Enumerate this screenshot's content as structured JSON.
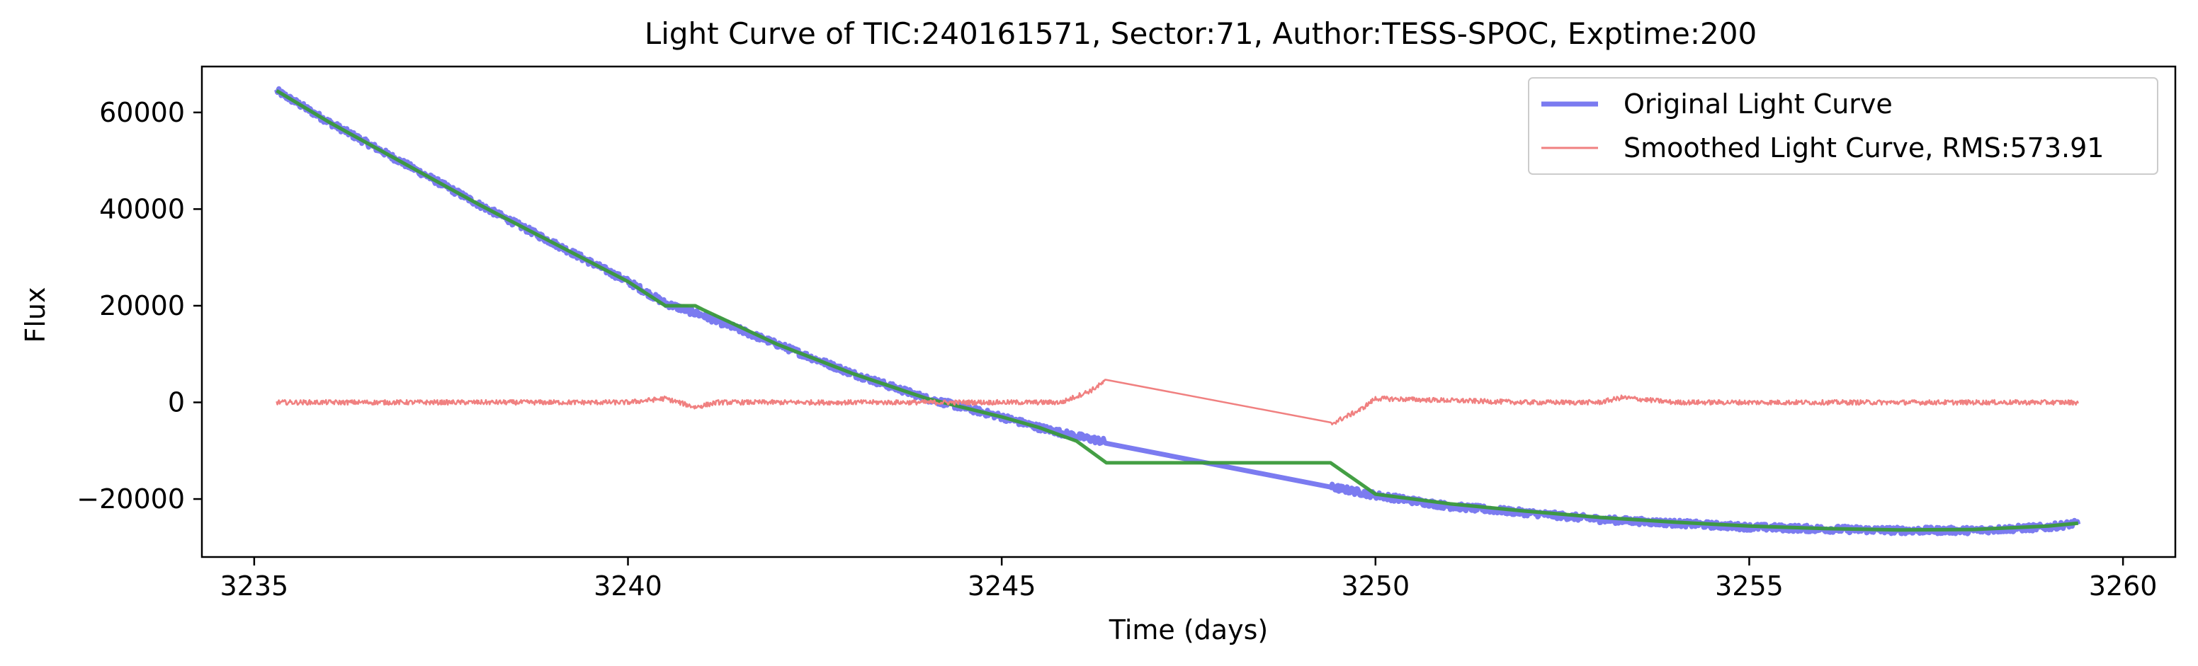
{
  "chart_data": {
    "type": "line",
    "title": "Light Curve of TIC:240161571, Sector:71, Author:TESS-SPOC, Exptime:200",
    "xlabel": "Time (days)",
    "ylabel": "Flux",
    "xlim": [
      3234.3,
      3260.7
    ],
    "ylim": [
      -32000,
      69500
    ],
    "xticks": [
      3235,
      3240,
      3245,
      3250,
      3255,
      3260
    ],
    "xtick_labels": [
      "3235",
      "3240",
      "3245",
      "3250",
      "3255",
      "3260"
    ],
    "yticks": [
      -20000,
      0,
      20000,
      40000,
      60000
    ],
    "ytick_labels": [
      "−20000",
      "0",
      "20000",
      "40000",
      "60000"
    ],
    "grid": false,
    "legend_position": "top-right",
    "series": [
      {
        "name": "Original Light Curve",
        "legend_label": "Original Light Curve",
        "color": "#7b7bf0",
        "noisy": true,
        "x": [
          3235.3,
          3236.0,
          3237.0,
          3238.0,
          3239.0,
          3240.0,
          3240.5,
          3241.0,
          3242.0,
          3243.0,
          3244.0,
          3245.0,
          3245.5,
          3246.0,
          3246.4,
          3249.4,
          3250.0,
          3251.0,
          3252.0,
          3253.0,
          3254.0,
          3255.0,
          3256.0,
          3257.0,
          3258.0,
          3259.0,
          3259.4
        ],
        "y": [
          64500,
          58000,
          49500,
          41000,
          33000,
          25000,
          20500,
          18000,
          12000,
          6000,
          800,
          -3000,
          -5200,
          -7000,
          -8200,
          -17500,
          -19200,
          -21500,
          -22800,
          -24200,
          -25000,
          -25800,
          -26200,
          -26500,
          -26500,
          -25800,
          -25000
        ]
      },
      {
        "name": "",
        "color": "#3a9a3a",
        "noisy": false,
        "x": [
          3235.3,
          3236.0,
          3237.0,
          3238.0,
          3239.0,
          3240.0,
          3240.5,
          3240.9,
          3241.0,
          3242.0,
          3243.0,
          3244.0,
          3245.0,
          3245.5,
          3246.0,
          3246.4,
          3249.4,
          3250.0,
          3251.0,
          3252.0,
          3253.0,
          3254.0,
          3255.0,
          3256.0,
          3257.0,
          3258.0,
          3259.0,
          3259.4
        ],
        "y": [
          64500,
          58000,
          49500,
          41000,
          33000,
          25000,
          20000,
          20000,
          19200,
          12000,
          6000,
          800,
          -3000,
          -5200,
          -8000,
          -12500,
          -12500,
          -19000,
          -21000,
          -22500,
          -23800,
          -24800,
          -25600,
          -26100,
          -26400,
          -26300,
          -25600,
          -25000
        ]
      },
      {
        "name": "Smoothed Light Curve, RMS:573.91",
        "legend_label": "Smoothed Light Curve, RMS:573.91",
        "color": "#f08080",
        "noisy": true,
        "x": [
          3235.3,
          3237.0,
          3239.0,
          3240.0,
          3240.5,
          3240.9,
          3241.2,
          3243.0,
          3245.0,
          3245.8,
          3246.2,
          3246.4,
          3249.4,
          3249.8,
          3250.0,
          3252.0,
          3253.0,
          3253.3,
          3254.0,
          3256.0,
          3258.0,
          3259.4
        ],
        "y": [
          0,
          0,
          0,
          0,
          800,
          -1000,
          0,
          0,
          0,
          0,
          2500,
          4500,
          -4500,
          -1500,
          800,
          0,
          0,
          1000,
          0,
          0,
          0,
          0
        ]
      }
    ]
  }
}
